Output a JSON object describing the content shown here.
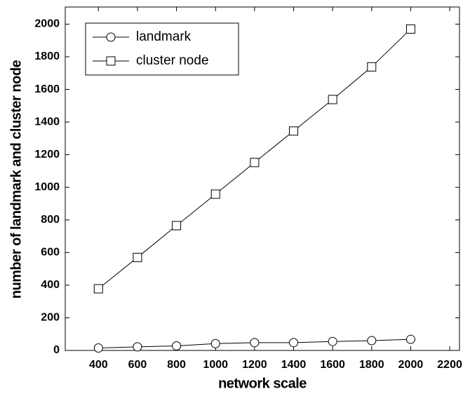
{
  "chart_data": {
    "type": "line",
    "x_label": "network scale",
    "y_label": "number of landmark and cluster node",
    "x": [
      400,
      600,
      800,
      1000,
      1200,
      1400,
      1600,
      1800,
      2000
    ],
    "series": [
      {
        "name": "landmark",
        "color": "#000000",
        "marker": "circle",
        "values": [
          15,
          22,
          28,
          42,
          48,
          48,
          55,
          60,
          68
        ]
      },
      {
        "name": "cluster node",
        "color": "#000000",
        "marker": "square",
        "values": [
          378,
          570,
          765,
          958,
          1152,
          1345,
          1538,
          1738,
          1970
        ]
      }
    ],
    "xlim": [
      230,
      2250
    ],
    "xticks": [
      400,
      600,
      800,
      1000,
      1200,
      1400,
      1600,
      1800,
      2000,
      2200
    ],
    "ylim": [
      0,
      2105
    ],
    "yticks": [
      0,
      200,
      400,
      600,
      800,
      1000,
      1200,
      1400,
      1600,
      1800,
      2000
    ],
    "grid": false,
    "legend": "upper left"
  }
}
